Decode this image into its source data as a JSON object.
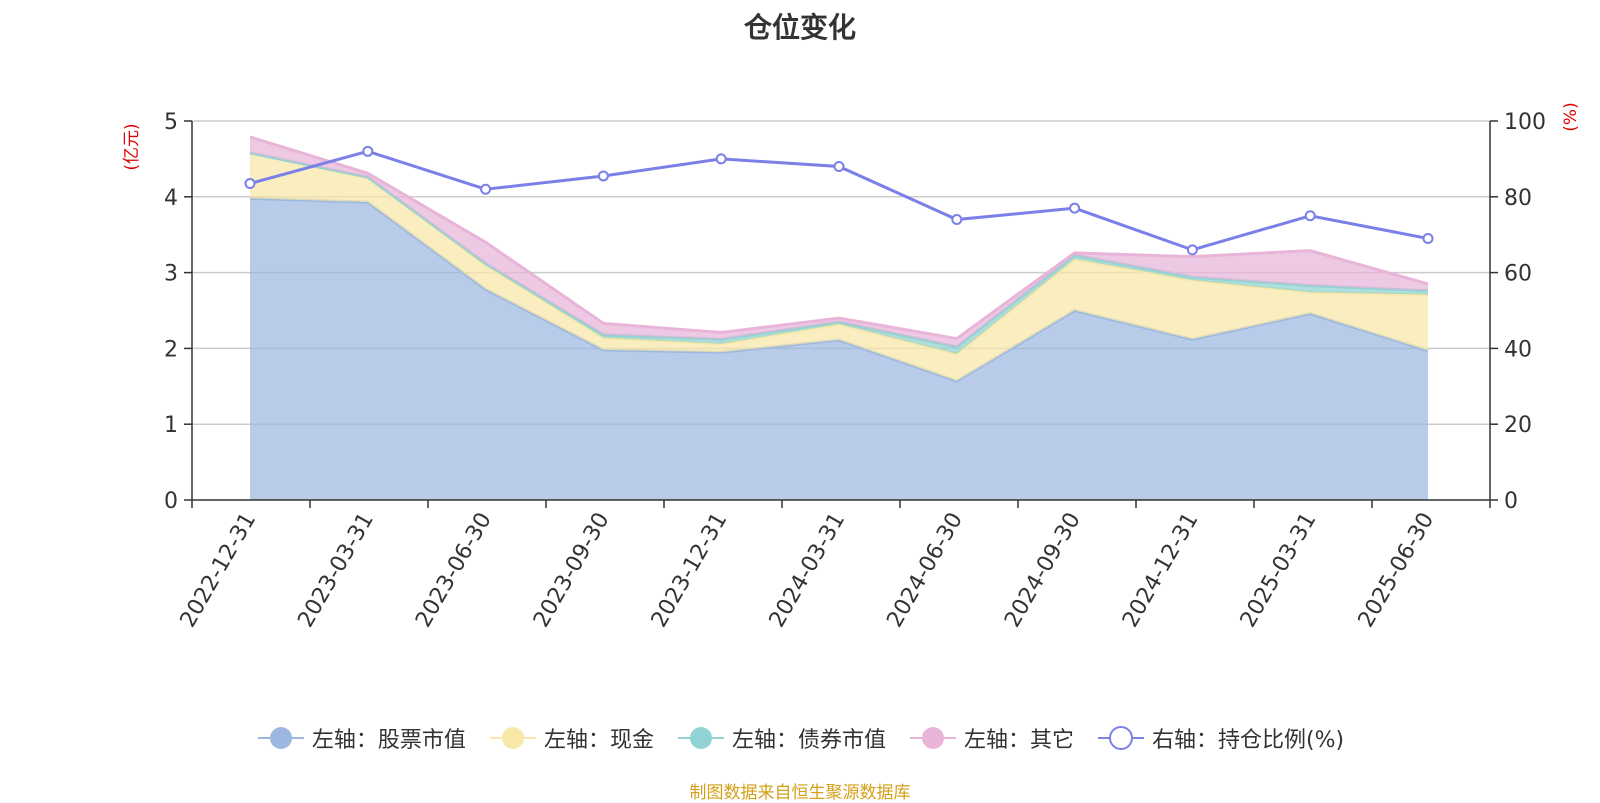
{
  "chart_data": {
    "type": "area",
    "title": "仓位变化",
    "x": [
      "2022-12-31",
      "2023-03-31",
      "2023-06-30",
      "2023-09-30",
      "2023-12-31",
      "2024-03-31",
      "2024-06-30",
      "2024-09-30",
      "2024-12-31",
      "2025-03-31",
      "2025-06-30"
    ],
    "left_axis": {
      "unit": "(亿元)",
      "ylim": [
        0,
        5
      ],
      "ticks": [
        0,
        1,
        2,
        3,
        4,
        5
      ]
    },
    "right_axis": {
      "unit": "(%)",
      "ylim": [
        0,
        100
      ],
      "ticks": [
        0,
        20,
        40,
        60,
        80,
        100
      ]
    },
    "stacked_series": [
      {
        "name": "左轴：股票市值",
        "color": "#9db8e0",
        "values": [
          3.98,
          3.93,
          2.78,
          1.98,
          1.95,
          2.11,
          1.57,
          2.5,
          2.12,
          2.46,
          1.97
        ]
      },
      {
        "name": "左轴：现金",
        "color": "#f8e8a8",
        "values": [
          0.6,
          0.32,
          0.32,
          0.16,
          0.11,
          0.21,
          0.36,
          0.68,
          0.78,
          0.28,
          0.74
        ]
      },
      {
        "name": "左轴：债券市值",
        "color": "#91d3d3",
        "values": [
          0.0,
          0.01,
          0.02,
          0.04,
          0.06,
          0.03,
          0.09,
          0.05,
          0.04,
          0.09,
          0.05
        ]
      },
      {
        "name": "左轴：其它",
        "color": "#e8b4d8",
        "values": [
          0.21,
          0.05,
          0.28,
          0.15,
          0.09,
          0.05,
          0.11,
          0.03,
          0.27,
          0.46,
          0.09
        ]
      }
    ],
    "line_series": {
      "name": "右轴：持仓比例(%)",
      "color": "#7b7fe8",
      "values": [
        83.5,
        92.0,
        82.0,
        85.5,
        90.0,
        88.0,
        74.0,
        77.0,
        66.0,
        75.0,
        69.0
      ]
    },
    "legend_position": "bottom",
    "grid": true
  },
  "source_note": "制图数据来自恒生聚源数据库"
}
